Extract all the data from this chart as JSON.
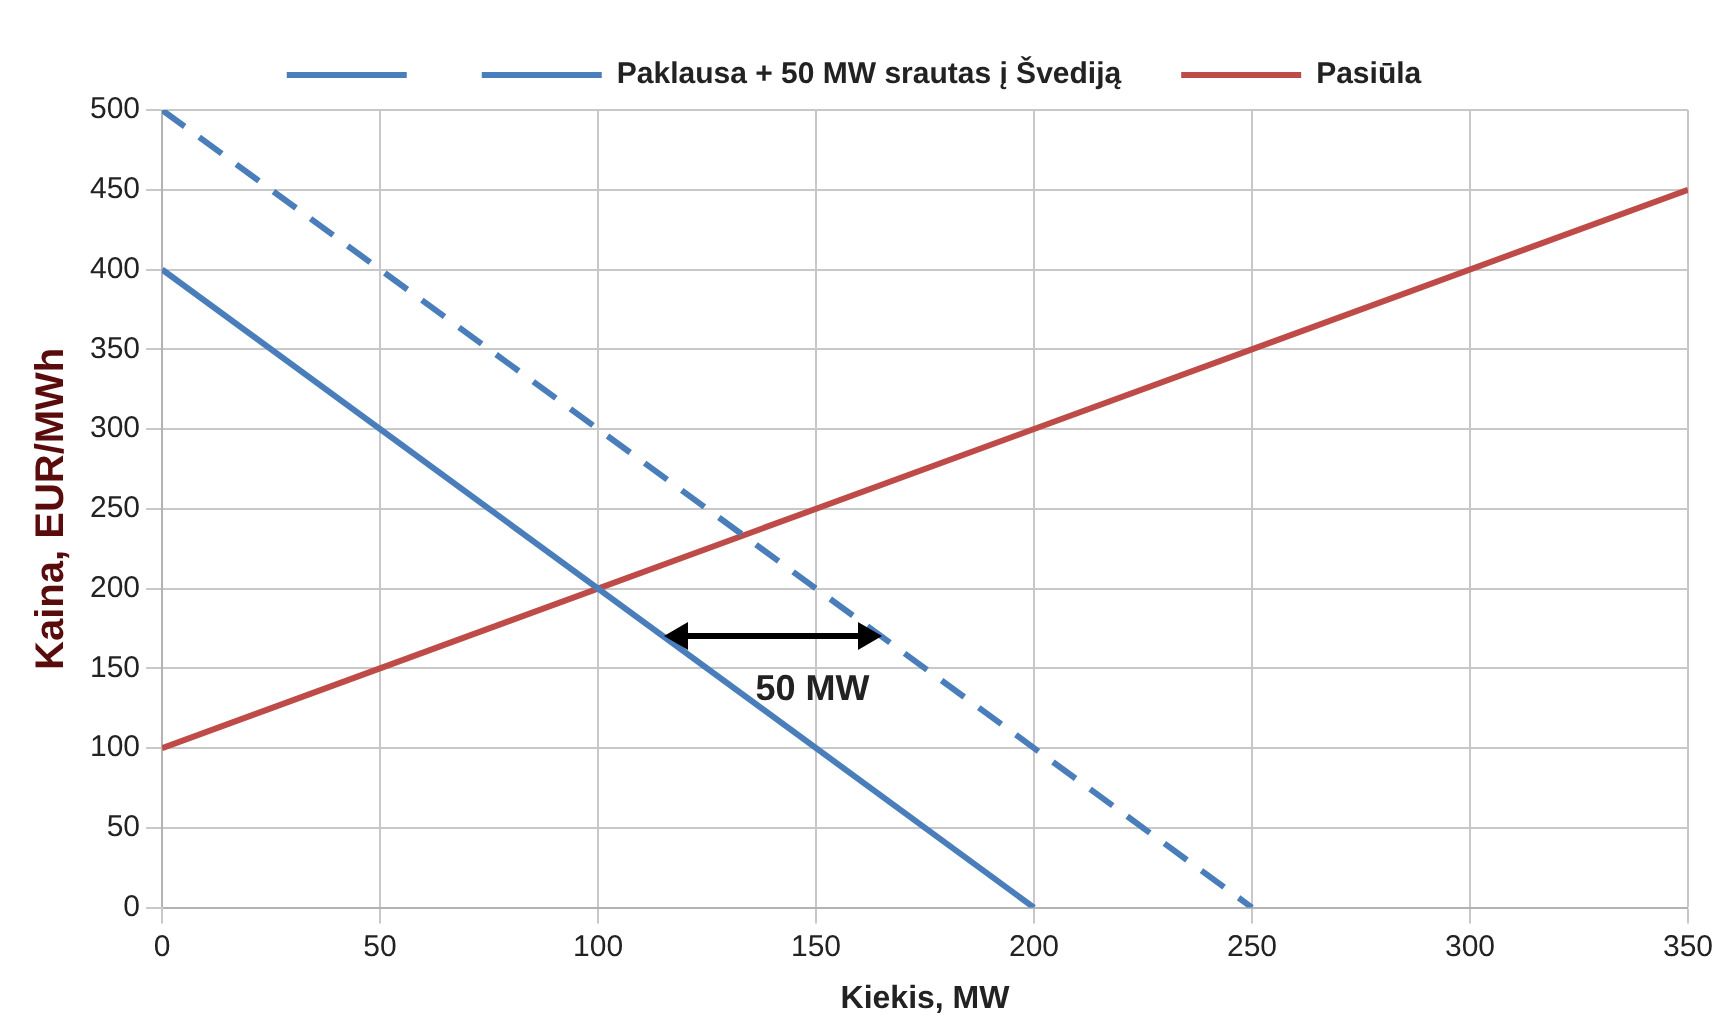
{
  "chart_data": {
    "type": "line",
    "xlabel": "Kiekis, MW",
    "ylabel": "Kaina, EUR/MWh",
    "series": [
      {
        "color": "#4a7ebb",
        "x": [
          0,
          200
        ],
        "values": [
          400,
          0
        ],
        "line_style": "solid"
      },
      {
        "name": "Paklausa + 50 MW srautas į Švediją",
        "color": "#4a7ebb",
        "x": [
          0,
          250
        ],
        "values": [
          500,
          0
        ],
        "line_style": "dashed"
      },
      {
        "name": "Pasiūla",
        "color": "#be4b48",
        "x": [
          0,
          350
        ],
        "values": [
          100,
          450
        ],
        "line_style": "solid"
      }
    ],
    "xlim": [
      0,
      350
    ],
    "xticks": [
      0,
      50,
      100,
      150,
      200,
      250,
      300,
      350
    ],
    "ylim": [
      0,
      500
    ],
    "yticks": [
      0,
      50,
      100,
      150,
      200,
      250,
      300,
      350,
      400,
      450,
      500
    ],
    "grid": true,
    "legend": "top",
    "marker": "none",
    "annotations": [
      {
        "text": "50 MW",
        "x": 165,
        "y": 170
      }
    ]
  }
}
